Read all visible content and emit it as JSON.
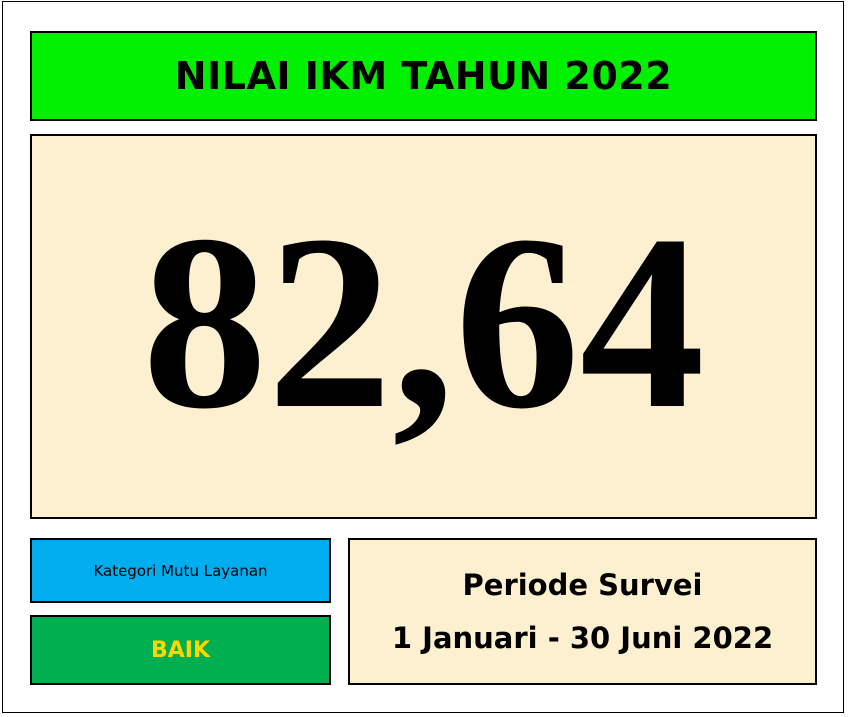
{
  "title": "NILAI IKM TAHUN 2022",
  "score": "82,64",
  "category": {
    "label": "Kategori Mutu Layanan",
    "value": "BAIK"
  },
  "period": {
    "label": "Periode Survei",
    "range": "1 Januari - 30 Juni 2022"
  },
  "colors": {
    "title_bg": "#00f000",
    "score_bg": "#fdf0d0",
    "category_label_bg": "#00aeef",
    "category_value_bg": "#00b050",
    "category_value_text": "#ffd700",
    "period_bg": "#fdf0d0"
  }
}
